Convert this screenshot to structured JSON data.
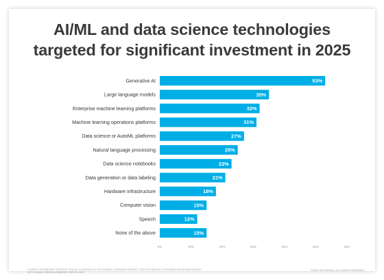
{
  "title_line1": "AI/ML and data science technologies",
  "title_line2": "targeted for significant investment in 2025",
  "footer": {
    "source_line1": "SOURCE: ENTERPRISE STRATEGY GROUP, A DIVISION OF TECHTARGET, RESEARCH REPORT, 2025 TECHNOLOGY SPENDING INTENTIONS SURVEY",
    "source_line2": "AUTO & BASE SPEND ALIGNMENT: 2024 TO 2025",
    "copyright": "©2025 TECHTARGET. ALL RIGHTS RESERVED."
  },
  "colors": {
    "bar": "#00aee6",
    "label": "#ffffff",
    "axis": "#9a9a9a",
    "grid": "#eeeeee"
  },
  "chart_data": {
    "type": "bar",
    "orientation": "horizontal",
    "categories": [
      "Generative AI",
      "Large language models",
      "Enterprise machine learning platforms",
      "Machine learning operations platforms",
      "Data science or AutoML platforms",
      "Natural language processing",
      "Data science notebooks",
      "Data generation or data labeling",
      "Hardware infrastructure",
      "Computer vision",
      "Speech",
      "None of the above"
    ],
    "values": [
      53,
      35,
      32,
      31,
      27,
      25,
      23,
      21,
      18,
      15,
      12,
      15
    ],
    "value_labels": [
      "53%",
      "35%",
      "32%",
      "31%",
      "27%",
      "25%",
      "23%",
      "21%",
      "18%",
      "15%",
      "12%",
      "15%"
    ],
    "xlim": [
      0,
      60
    ],
    "xticks": [
      0,
      10,
      20,
      30,
      40,
      50,
      60
    ],
    "xtick_labels": [
      "0%",
      "10%",
      "20%",
      "30%",
      "40%",
      "50%",
      "60%"
    ],
    "grid": false,
    "legend": "none"
  }
}
